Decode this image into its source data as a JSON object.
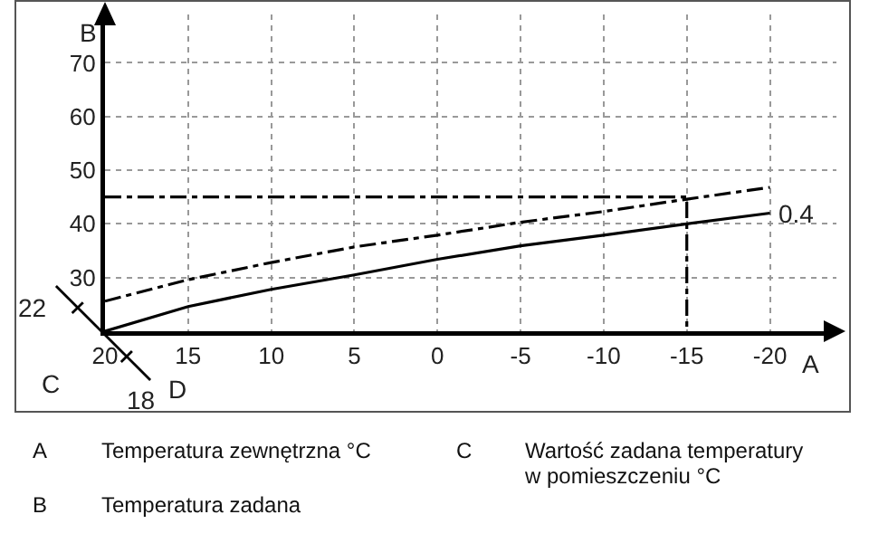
{
  "chart_data": {
    "type": "line",
    "xlabel": "A",
    "ylabel": "B",
    "xlim": [
      20,
      -24
    ],
    "xticks": [
      20,
      15,
      10,
      5,
      0,
      -5,
      -10,
      -15,
      -20
    ],
    "ylim": [
      20,
      79
    ],
    "yticks": [
      30,
      40,
      50,
      60,
      70
    ],
    "grid": true,
    "marker": "none",
    "series": [
      {
        "name": "0.4",
        "color": "#000000",
        "line_style": "solid",
        "x": [
          20,
          15,
          10,
          5,
          0,
          -5,
          -10,
          -15,
          -20
        ],
        "values": [
          20,
          24.6,
          27.8,
          30.5,
          33.4,
          35.9,
          37.9,
          40,
          42
        ]
      },
      {
        "color": "#000000",
        "line_style": "dashed",
        "x": [
          20,
          15,
          10,
          5,
          0,
          -5,
          -10,
          -15,
          -20
        ],
        "values": [
          25.6,
          29.6,
          32.8,
          35.7,
          37.9,
          40.3,
          42.3,
          44.6,
          46.8
        ]
      },
      {
        "color": "#000000",
        "line_style": "dashed",
        "x": [
          20,
          -15,
          -15
        ],
        "values": [
          45,
          45,
          20
        ]
      }
    ],
    "annotations": [
      "22",
      "18",
      "C",
      "D",
      "A Temperatura zewnętrzna °C",
      "B Temperatura zadana",
      "C Wartość zadana temperatury w pomieszczeniu °C"
    ]
  }
}
